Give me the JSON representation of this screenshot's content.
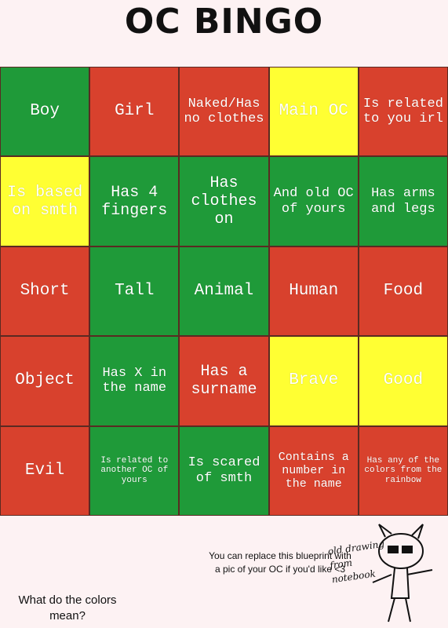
{
  "header": {
    "title": "OC BINGO"
  },
  "grid": {
    "cells": [
      {
        "text": "Boy",
        "color": "#1f9a39"
      },
      {
        "text": "Girl",
        "color": "#d8412d"
      },
      {
        "text": "Naked/Has no clothes",
        "color": "#d8412d"
      },
      {
        "text": "Main OC",
        "color": "#ffff33"
      },
      {
        "text": "Is related to you irl",
        "color": "#d8412d"
      },
      {
        "text": "Is based on smth",
        "color": "#ffff33"
      },
      {
        "text": "Has 4 fingers",
        "color": "#1f9a39"
      },
      {
        "text": "Has clothes on",
        "color": "#1f9a39"
      },
      {
        "text": "And old OC of yours",
        "color": "#1f9a39"
      },
      {
        "text": "Has arms and legs",
        "color": "#1f9a39"
      },
      {
        "text": "Short",
        "color": "#d8412d"
      },
      {
        "text": "Tall",
        "color": "#1f9a39"
      },
      {
        "text": "Animal",
        "color": "#1f9a39"
      },
      {
        "text": "Human",
        "color": "#d8412d"
      },
      {
        "text": "Food",
        "color": "#d8412d"
      },
      {
        "text": "Object",
        "color": "#d8412d"
      },
      {
        "text": "Has X in the name",
        "color": "#1f9a39"
      },
      {
        "text": "Has a surname",
        "color": "#d8412d"
      },
      {
        "text": "Brave",
        "color": "#ffff33"
      },
      {
        "text": "Good",
        "color": "#ffff33"
      },
      {
        "text": "Evil",
        "color": "#d8412d"
      },
      {
        "text": "Is related to another OC of yours",
        "color": "#1f9a39"
      },
      {
        "text": "Is scared of smth",
        "color": "#1f9a39"
      },
      {
        "text": "Contains a number in the name",
        "color": "#d8412d"
      },
      {
        "text": "Has any of the colors from the rainbow",
        "color": "#d8412d"
      }
    ]
  },
  "footer": {
    "note": "You can replace this blueprint with a pic of your OC if you'd like <3",
    "question": "What do the colors mean?",
    "sketch_caption": "old drawing from notebook"
  }
}
